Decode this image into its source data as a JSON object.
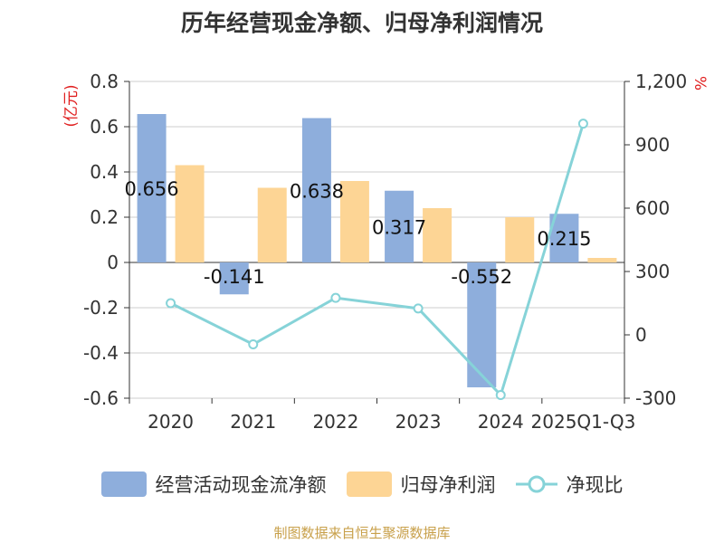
{
  "title": "历年经营现金净额、归母净利润情况",
  "source_note": "制图数据来自恒生聚源数据库",
  "colors": {
    "cash_flow": "#8eaedc",
    "net_profit": "#fdd595",
    "ratio": "#86d3d8",
    "axis_unit": "#e02020"
  },
  "chart_data": {
    "type": "bar",
    "categories": [
      "2020",
      "2021",
      "2022",
      "2023",
      "2024",
      "2025Q1-Q3"
    ],
    "series": [
      {
        "name": "经营活动现金流净额",
        "type": "bar",
        "axis": "left",
        "values": [
          0.656,
          -0.141,
          0.638,
          0.317,
          -0.552,
          0.215
        ],
        "data_labels": [
          "0.656",
          "-0.141",
          "0.638",
          "0.317",
          "-0.552",
          "0.215"
        ]
      },
      {
        "name": "归母净利润",
        "type": "bar",
        "axis": "left",
        "values": [
          0.43,
          0.33,
          0.36,
          0.24,
          0.2,
          0.02
        ]
      },
      {
        "name": "净现比",
        "type": "line",
        "axis": "right",
        "values": [
          150,
          -45,
          175,
          125,
          -285,
          1000
        ]
      }
    ],
    "left_axis": {
      "unit": "(亿元)",
      "ylim": [
        -0.6,
        0.8
      ],
      "ticks": [
        0.8,
        0.6,
        0.4,
        0.2,
        0,
        -0.2,
        -0.4,
        -0.6
      ],
      "tick_labels": [
        "0.8",
        "0.6",
        "0.4",
        "0.2",
        "0",
        "-0.2",
        "-0.4",
        "-0.6"
      ]
    },
    "right_axis": {
      "unit": "%",
      "ylim": [
        -300,
        1200
      ],
      "ticks": [
        1200,
        900,
        600,
        300,
        0,
        -300
      ],
      "tick_labels": [
        "1,200",
        "900",
        "600",
        "300",
        "0",
        "-300"
      ]
    },
    "grid": true,
    "legend": "bottom"
  }
}
